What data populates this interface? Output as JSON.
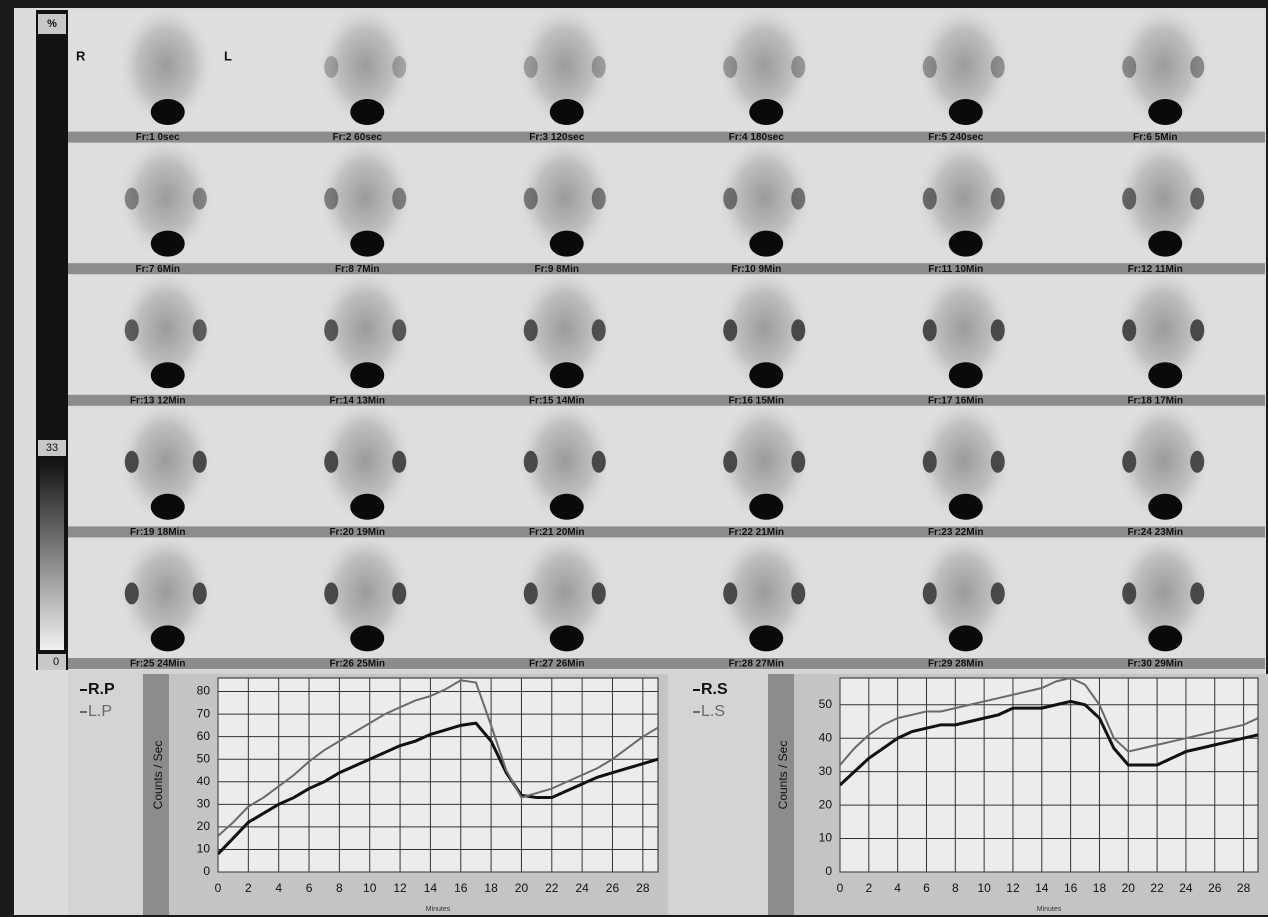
{
  "colorbar": {
    "top_label": "%",
    "mid_label": "33",
    "bottom_label": "0"
  },
  "orientation": {
    "right": "R",
    "left": "L"
  },
  "frames": [
    "Fr:1 0sec",
    "Fr:2 60sec",
    "Fr:3 120sec",
    "Fr:4 180sec",
    "Fr:5 240sec",
    "Fr:6 5Min",
    "Fr:7 6Min",
    "Fr:8 7Min",
    "Fr:9 8Min",
    "Fr:10 9Min",
    "Fr:11 10Min",
    "Fr:12 11Min",
    "Fr:13 12Min",
    "Fr:14 13Min",
    "Fr:15 14Min",
    "Fr:16 15Min",
    "Fr:17 16Min",
    "Fr:18 17Min",
    "Fr:19 18Min",
    "Fr:20 19Min",
    "Fr:21 20Min",
    "Fr:22 21Min",
    "Fr:23 22Min",
    "Fr:24 23Min",
    "Fr:25 24Min",
    "Fr:26 25Min",
    "Fr:27 26Min",
    "Fr:28 27Min",
    "Fr:29 28Min",
    "Fr:30 29Min"
  ],
  "chart_data": [
    {
      "type": "line",
      "x_label": "Minutes",
      "y_label": "Counts / Sec",
      "x": [
        0,
        1,
        2,
        3,
        4,
        5,
        6,
        7,
        8,
        9,
        10,
        11,
        12,
        13,
        14,
        15,
        16,
        17,
        18,
        19,
        20,
        21,
        22,
        23,
        24,
        25,
        26,
        27,
        28,
        29
      ],
      "xlim": [
        0,
        29
      ],
      "xticks": [
        0,
        2,
        4,
        6,
        8,
        10,
        12,
        14,
        16,
        18,
        20,
        22,
        24,
        26,
        28
      ],
      "ylim": [
        0,
        86
      ],
      "yticks": [
        0,
        10,
        20,
        30,
        40,
        50,
        60,
        70,
        80
      ],
      "grid": true,
      "series": [
        {
          "name": "R.P",
          "color": "#111111",
          "values": [
            8,
            15,
            22,
            26,
            30,
            33,
            37,
            40,
            44,
            47,
            50,
            53,
            56,
            58,
            61,
            63,
            65,
            66,
            58,
            44,
            34,
            33,
            33,
            36,
            39,
            42,
            44,
            46,
            48,
            50
          ]
        },
        {
          "name": "L.P",
          "color": "#6a6a6a",
          "values": [
            16,
            22,
            29,
            33,
            38,
            43,
            49,
            54,
            58,
            62,
            66,
            70,
            73,
            76,
            78,
            81,
            85,
            84,
            65,
            45,
            33,
            35,
            37,
            40,
            43,
            46,
            50,
            55,
            60,
            64
          ]
        }
      ]
    },
    {
      "type": "line",
      "x_label": "Minutes",
      "y_label": "Counts / Sec",
      "x": [
        0,
        1,
        2,
        3,
        4,
        5,
        6,
        7,
        8,
        9,
        10,
        11,
        12,
        13,
        14,
        15,
        16,
        17,
        18,
        19,
        20,
        21,
        22,
        23,
        24,
        25,
        26,
        27,
        28,
        29
      ],
      "xlim": [
        0,
        29
      ],
      "xticks": [
        0,
        2,
        4,
        6,
        8,
        10,
        12,
        14,
        16,
        18,
        20,
        22,
        24,
        26,
        28
      ],
      "ylim": [
        0,
        58
      ],
      "yticks": [
        0,
        10,
        20,
        30,
        40,
        50
      ],
      "grid": true,
      "series": [
        {
          "name": "R.S",
          "color": "#111111",
          "values": [
            26,
            30,
            34,
            37,
            40,
            42,
            43,
            44,
            44,
            45,
            46,
            47,
            49,
            49,
            49,
            50,
            51,
            50,
            46,
            37,
            32,
            32,
            32,
            34,
            36,
            37,
            38,
            39,
            40,
            41
          ]
        },
        {
          "name": "L.S",
          "color": "#6a6a6a",
          "values": [
            32,
            37,
            41,
            44,
            46,
            47,
            48,
            48,
            49,
            50,
            51,
            52,
            53,
            54,
            55,
            57,
            58,
            56,
            50,
            40,
            36,
            37,
            38,
            39,
            40,
            41,
            42,
            43,
            44,
            46
          ]
        }
      ]
    }
  ]
}
